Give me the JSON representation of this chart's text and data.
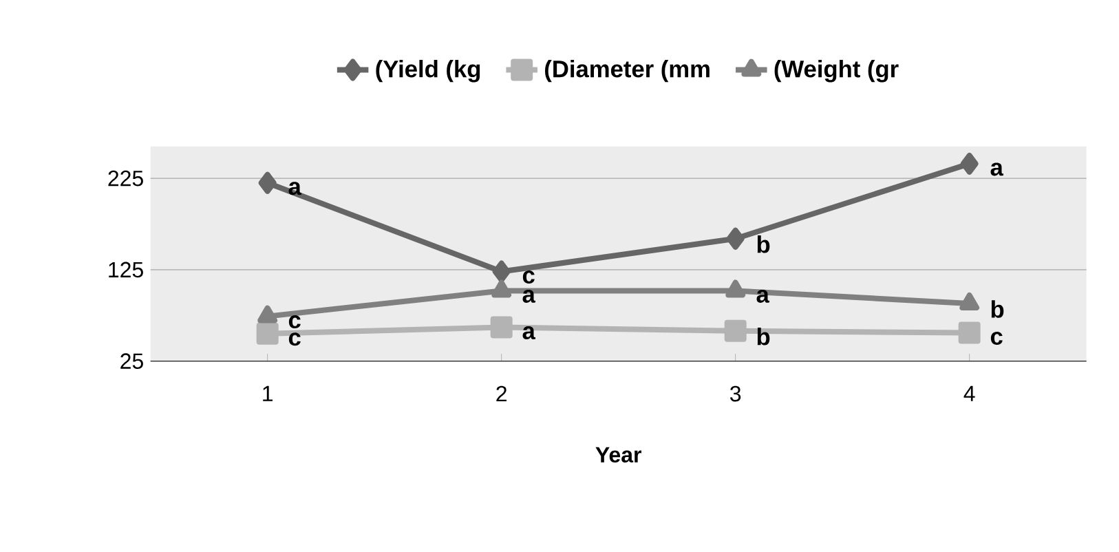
{
  "chart_data": {
    "type": "line",
    "xlabel": "Year",
    "categories": [
      "1",
      "2",
      "3",
      "4"
    ],
    "series": [
      {
        "name": "(Yield (kg",
        "color": "#666666",
        "marker": "diamond",
        "values": [
          220,
          123,
          159,
          241
        ]
      },
      {
        "name": "(Diameter (mm",
        "color": "#b3b3b3",
        "marker": "square",
        "values": [
          55,
          62,
          58,
          56
        ]
      },
      {
        "name": "(Weight (gr",
        "color": "#808080",
        "marker": "triangle",
        "values": [
          74,
          102,
          102,
          88
        ]
      }
    ],
    "ylim": [
      25,
      260
    ],
    "yticks": [
      25,
      125,
      225
    ],
    "grid": "y",
    "legend": "top",
    "line_style": "solid",
    "annotations": [
      {
        "text": "a",
        "x": "1",
        "y": 220
      },
      {
        "text": "c",
        "x": "2",
        "y": 123
      },
      {
        "text": "b",
        "x": "3",
        "y": 159
      },
      {
        "text": "a",
        "x": "4",
        "y": 241
      },
      {
        "text": "c",
        "x": "1",
        "y": 55
      },
      {
        "text": "a",
        "x": "2",
        "y": 62
      },
      {
        "text": "b",
        "x": "3",
        "y": 58
      },
      {
        "text": "c",
        "x": "4",
        "y": 56
      },
      {
        "text": "c",
        "x": "1",
        "y": 74
      },
      {
        "text": "a",
        "x": "2",
        "y": 102
      },
      {
        "text": "a",
        "x": "3",
        "y": 102
      },
      {
        "text": "b",
        "x": "4",
        "y": 88
      }
    ]
  }
}
